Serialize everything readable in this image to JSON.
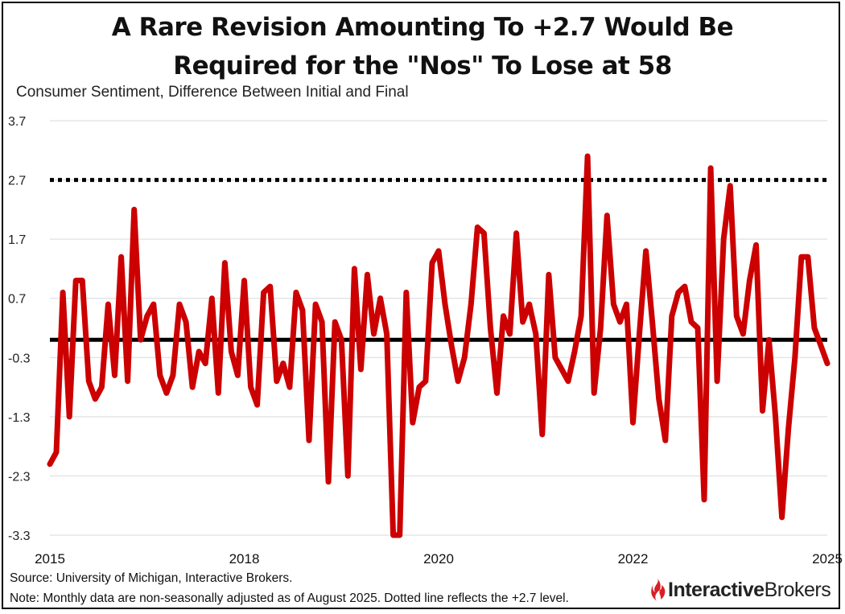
{
  "title_line1": "A Rare Revision Amounting To +2.7 Would Be",
  "title_line2": "Required for the \"Nos\" To Lose at 58",
  "subtitle": "Consumer Sentiment, Difference Between Initial and Final",
  "source": "Source: University of Michigan, Interactive Brokers.",
  "note": "Note: Monthly data are non-seasonally adjusted as of August 2025. Dotted line reflects the +2.7 level.",
  "logo": {
    "bold": "Interactive",
    "regular": "Brokers",
    "icon": "flame-icon",
    "color": "#d81f26"
  },
  "colors": {
    "series": "#cc0000",
    "reference": "#000000",
    "grid": "#d9d9d9"
  },
  "chart_data": {
    "type": "line",
    "ylim": [
      -3.3,
      3.7
    ],
    "yticks": [
      "3.7",
      "2.7",
      "1.7",
      "0.7",
      "-0.3",
      "-1.3",
      "-2.3",
      "-3.3"
    ],
    "xticks": [
      {
        "label": "2015",
        "x": 0
      },
      {
        "label": "2018",
        "x": 30
      },
      {
        "label": "2020",
        "x": 60
      },
      {
        "label": "2022",
        "x": 90
      },
      {
        "label": "2025",
        "x": 120
      }
    ],
    "grid": true,
    "reference_lines": [
      {
        "y": 2.7,
        "style": "dotted"
      },
      {
        "y": 0.0,
        "style": "solid"
      }
    ],
    "series": [
      {
        "values": [
          -2.1,
          -1.9,
          0.8,
          -1.3,
          1.0,
          1.0,
          -0.7,
          -1.0,
          -0.8,
          0.6,
          -0.6,
          1.4,
          -0.7,
          2.2,
          0.0,
          0.4,
          0.6,
          -0.6,
          -0.9,
          -0.6,
          0.6,
          0.3,
          -0.8,
          -0.2,
          -0.4,
          0.7,
          -0.9,
          1.3,
          -0.2,
          -0.6,
          1.0,
          -0.8,
          -1.1,
          0.8,
          0.9,
          -0.7,
          -0.4,
          -0.8,
          0.8,
          0.5,
          -1.7,
          0.6,
          0.3,
          -2.4,
          0.3,
          0.0,
          -2.3,
          1.2,
          -0.5,
          1.1,
          0.1,
          0.7,
          0.1,
          -3.4,
          -3.4,
          0.8,
          -1.4,
          -0.8,
          -0.7,
          1.3,
          1.5,
          0.6,
          -0.1,
          -0.7,
          -0.3,
          0.6,
          1.9,
          1.8,
          0.2,
          -0.9,
          0.4,
          0.1,
          1.8,
          0.3,
          0.6,
          0.1,
          -1.6,
          1.1,
          -0.3,
          -0.5,
          -0.7,
          -0.2,
          0.4,
          3.1,
          -0.9,
          0.2,
          2.1,
          0.6,
          0.3,
          0.6,
          -1.4,
          0.1,
          1.5,
          0.3,
          -1.0,
          -1.7,
          0.4,
          0.8,
          0.9,
          0.3,
          0.2,
          -2.7,
          2.9,
          -0.7,
          1.7,
          2.6,
          0.4,
          0.1,
          1.0,
          1.6,
          -1.2,
          0.0,
          -1.3,
          -3.0,
          -1.5,
          -0.3,
          1.4,
          1.4,
          0.2,
          -0.1,
          -0.4
        ]
      }
    ]
  }
}
